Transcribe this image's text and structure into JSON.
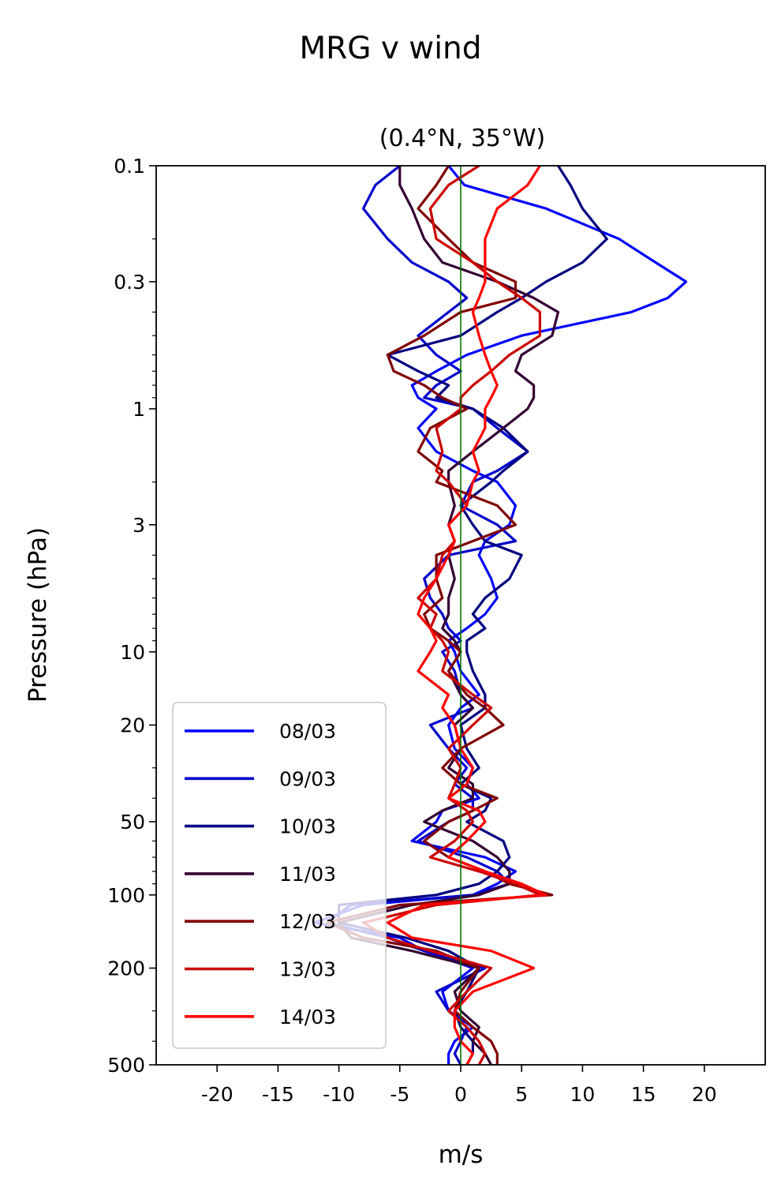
{
  "figure": {
    "suptitle": "MRG v wind"
  },
  "chart_data": {
    "type": "line",
    "title": "(0.4°N, 35°W)",
    "xlabel": "m/s",
    "ylabel": "Pressure (hPa)",
    "xlim": [
      -25,
      25
    ],
    "ylim": [
      500,
      0.1
    ],
    "yscale": "log",
    "yinverted": true,
    "grid": false,
    "legend_position": "lower-left",
    "xticks": [
      -20,
      -15,
      -10,
      -5,
      0,
      5,
      10,
      15,
      20
    ],
    "xtick_labels": [
      "-20",
      "-15",
      "-10",
      "-5",
      "0",
      "5",
      "10",
      "15",
      "20"
    ],
    "yticks": [
      0.1,
      0.3,
      1,
      3,
      10,
      20,
      50,
      100,
      200,
      500
    ],
    "ytick_labels": [
      "0.1",
      "0.3",
      "1",
      "3",
      "10",
      "20",
      "50",
      "100",
      "200",
      "500"
    ],
    "zero_line": {
      "x": 0,
      "color": "#007700"
    },
    "pressure_levels": [
      0.1,
      0.12,
      0.15,
      0.2,
      0.25,
      0.3,
      0.35,
      0.4,
      0.5,
      0.6,
      0.7,
      0.8,
      0.9,
      1.0,
      1.2,
      1.5,
      1.8,
      2.0,
      2.5,
      3.0,
      3.5,
      4.0,
      5.0,
      6.0,
      7.0,
      8.0,
      9.0,
      10,
      12,
      15,
      17,
      20,
      25,
      30,
      35,
      40,
      45,
      50,
      60,
      70,
      80,
      90,
      100,
      110,
      130,
      150,
      170,
      200,
      250,
      300,
      350,
      400,
      450,
      500
    ],
    "series": [
      {
        "name": "08/03",
        "color": "#0000ff",
        "values": [
          -1.0,
          0.3,
          7.0,
          13.0,
          16.0,
          18.5,
          17.0,
          14.0,
          5.0,
          0.5,
          -2.0,
          -4.0,
          -3.5,
          -2.0,
          -3.5,
          -2.0,
          1.0,
          3.0,
          4.5,
          4.0,
          2.0,
          1.5,
          2.5,
          3.0,
          2.0,
          0.5,
          -1.0,
          -0.5,
          0.0,
          1.5,
          0.0,
          -1.0,
          -0.5,
          1.0,
          0.5,
          1.5,
          -1.5,
          -2.0,
          -4.0,
          2.0,
          4.5,
          3.0,
          1.0,
          -8.0,
          -12.0,
          -5.0,
          -3.0,
          1.0,
          -1.5,
          -1.0,
          1.0,
          -0.5,
          -1.0,
          -1.0
        ]
      },
      {
        "name": "09/03",
        "color": "#0000cc",
        "values": [
          -5.0,
          -7.0,
          -8.0,
          -6.0,
          -4.0,
          -1.0,
          0.5,
          -1.0,
          -3.5,
          -2.0,
          0.0,
          -2.0,
          -3.0,
          1.0,
          3.0,
          5.5,
          3.0,
          1.0,
          0.0,
          3.0,
          4.5,
          -1.0,
          -3.0,
          -2.5,
          -1.5,
          -1.0,
          0.0,
          -1.5,
          -0.5,
          0.0,
          1.0,
          -2.5,
          -1.0,
          0.5,
          -0.5,
          1.0,
          1.0,
          -1.0,
          -3.5,
          0.5,
          3.0,
          4.0,
          1.0,
          -9.0,
          -11.0,
          -6.0,
          -3.0,
          2.0,
          -2.0,
          -1.0,
          0.5,
          0.0,
          -0.5,
          0.0
        ]
      },
      {
        "name": "10/03",
        "color": "#000080",
        "values": [
          8.0,
          9.0,
          10.0,
          12.0,
          10.0,
          7.0,
          5.0,
          3.0,
          0.0,
          -6.0,
          -3.5,
          -1.0,
          -2.0,
          1.0,
          3.5,
          5.5,
          3.5,
          2.5,
          0.0,
          1.0,
          2.0,
          5.0,
          4.0,
          2.0,
          1.0,
          2.0,
          0.5,
          0.5,
          1.0,
          2.0,
          2.0,
          0.0,
          0.5,
          1.5,
          0.0,
          2.5,
          2.0,
          0.5,
          3.5,
          4.0,
          3.0,
          1.5,
          -2.0,
          -10.0,
          -10.0,
          -4.5,
          -1.0,
          1.5,
          0.5,
          -0.5,
          0.0,
          1.0,
          1.0,
          0.5
        ]
      },
      {
        "name": "11/03",
        "color": "#330033",
        "values": [
          -5.0,
          -5.0,
          -4.0,
          -3.0,
          -1.5,
          3.0,
          6.0,
          8.0,
          7.5,
          5.0,
          4.5,
          6.0,
          6.0,
          5.5,
          3.5,
          1.0,
          -1.0,
          -1.0,
          -0.5,
          -1.0,
          -0.5,
          -1.0,
          -0.5,
          -1.0,
          -1.0,
          -1.5,
          -0.5,
          0.0,
          -1.0,
          0.0,
          1.0,
          -0.5,
          0.0,
          -1.0,
          1.0,
          1.0,
          -1.5,
          -3.0,
          1.0,
          3.0,
          4.0,
          4.0,
          1.5,
          -4.0,
          -10.0,
          -9.0,
          -4.0,
          1.5,
          -0.5,
          0.0,
          1.5,
          1.0,
          2.0,
          2.5
        ]
      },
      {
        "name": "12/03",
        "color": "#800000",
        "values": [
          -1.0,
          -2.0,
          -3.5,
          -1.0,
          1.0,
          4.5,
          4.5,
          0.0,
          -3.0,
          -6.0,
          -5.5,
          -3.0,
          -1.5,
          0.5,
          -2.5,
          -3.5,
          -1.5,
          -2.0,
          3.0,
          4.5,
          1.0,
          -2.0,
          -2.0,
          -1.5,
          -3.0,
          -2.5,
          -1.0,
          0.0,
          -1.0,
          0.5,
          2.0,
          3.5,
          0.0,
          -1.5,
          0.0,
          3.0,
          1.0,
          -1.0,
          -3.0,
          -1.0,
          2.0,
          4.0,
          7.5,
          -5.0,
          -11.0,
          -8.0,
          -2.0,
          1.5,
          0.0,
          -0.5,
          1.0,
          2.5,
          3.0,
          3.0
        ]
      },
      {
        "name": "13/03",
        "color": "#cc0000",
        "values": [
          1.5,
          -1.0,
          -2.5,
          -2.0,
          1.0,
          3.0,
          5.0,
          6.5,
          6.5,
          4.0,
          2.5,
          1.0,
          0.0,
          0.0,
          -2.0,
          -1.5,
          -2.0,
          -1.0,
          0.5,
          -1.0,
          -0.5,
          -1.5,
          -2.0,
          -3.5,
          -2.0,
          -2.5,
          -1.5,
          -1.0,
          -1.5,
          1.0,
          2.5,
          1.0,
          -1.0,
          0.0,
          -0.5,
          -1.0,
          0.5,
          1.0,
          -0.5,
          -2.5,
          1.5,
          4.5,
          6.5,
          -2.0,
          -8.0,
          -6.0,
          -2.5,
          2.5,
          0.5,
          -1.0,
          0.5,
          1.5,
          2.0,
          1.5
        ]
      },
      {
        "name": "14/03",
        "color": "#ff0000",
        "values": [
          6.5,
          5.5,
          3.0,
          2.0,
          2.0,
          2.0,
          1.5,
          1.0,
          1.5,
          2.0,
          2.5,
          3.0,
          2.5,
          2.0,
          2.0,
          1.0,
          1.5,
          1.0,
          0.5,
          -1.0,
          -0.5,
          -1.0,
          -2.0,
          -3.0,
          -3.5,
          -2.5,
          -2.0,
          -2.5,
          -3.5,
          -1.0,
          -1.5,
          -0.5,
          0.0,
          1.0,
          0.5,
          -1.0,
          1.5,
          2.0,
          0.5,
          -1.0,
          2.0,
          5.0,
          7.0,
          -3.0,
          -6.0,
          -4.0,
          2.5,
          6.0,
          1.0,
          -0.5,
          -0.5,
          0.0,
          1.0,
          0.5
        ]
      }
    ]
  }
}
